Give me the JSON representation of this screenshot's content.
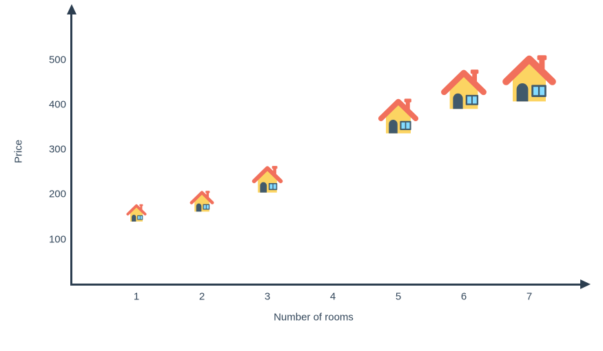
{
  "chart_data": {
    "type": "scatter",
    "subtype": "pictogram",
    "title": "",
    "xlabel": "Number of rooms",
    "ylabel": "Price",
    "x_ticks": [
      1,
      2,
      3,
      4,
      5,
      6,
      7
    ],
    "y_ticks": [
      100,
      200,
      300,
      400,
      500
    ],
    "xlim": [
      0,
      7.9
    ],
    "ylim": [
      0,
      620
    ],
    "grid": false,
    "legend": false,
    "marker": "house-icon",
    "points": [
      {
        "rooms": 1,
        "price": 160,
        "icon_size_px": 30
      },
      {
        "rooms": 2,
        "price": 185,
        "icon_size_px": 36
      },
      {
        "rooms": 3,
        "price": 235,
        "icon_size_px": 46
      },
      {
        "rooms": 5,
        "price": 375,
        "icon_size_px": 60
      },
      {
        "rooms": 6,
        "price": 435,
        "icon_size_px": 68
      },
      {
        "rooms": 7,
        "price": 460,
        "icon_size_px": 80
      }
    ]
  },
  "colors": {
    "background": "#FFFFFF",
    "axis": "#2C3E50",
    "text": "#33475B",
    "house_roof": "#F1705C",
    "house_body": "#FCD462",
    "house_door": "#415A6B",
    "house_window_pane": "#84DBFF"
  }
}
